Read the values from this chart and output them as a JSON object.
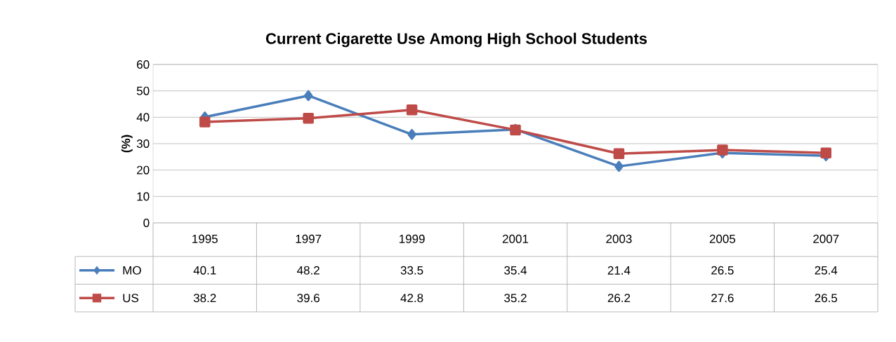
{
  "chart_data": {
    "type": "line",
    "title": "Current Cigarette Use Among High School Students",
    "ylabel": "(%)",
    "categories": [
      "1995",
      "1997",
      "1999",
      "2001",
      "2003",
      "2005",
      "2007"
    ],
    "series": [
      {
        "name": "MO",
        "color": "#4a7ebb",
        "marker": "diamond",
        "values": [
          40.1,
          48.2,
          33.5,
          35.4,
          21.4,
          26.5,
          25.4
        ]
      },
      {
        "name": "US",
        "color": "#be4b48",
        "marker": "square",
        "values": [
          38.2,
          39.6,
          42.8,
          35.2,
          26.2,
          27.6,
          26.5
        ]
      }
    ],
    "ylim": [
      0,
      60
    ],
    "yticks": [
      0,
      10,
      20,
      30,
      40,
      50,
      60
    ],
    "grid": "y",
    "legend": "left",
    "data_labels": true
  }
}
